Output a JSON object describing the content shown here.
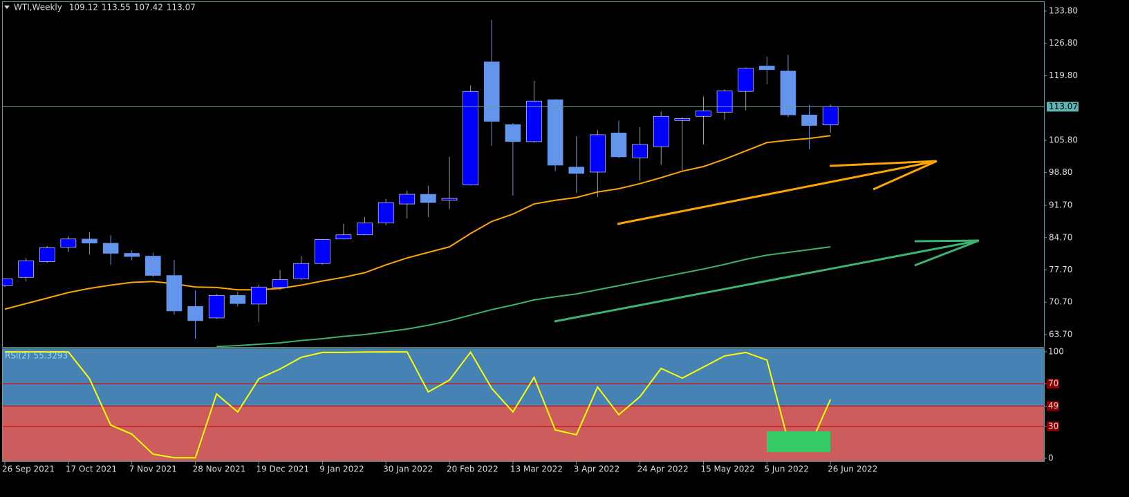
{
  "chart_data": [
    {
      "type": "candlestick",
      "title": "WTI,Weekly",
      "categories": [
        "26 Sep 2021",
        null,
        null,
        "17 Oct 2021",
        null,
        null,
        "7 Nov 2021",
        null,
        null,
        "28 Nov 2021",
        null,
        null,
        "19 Dec 2021",
        null,
        null,
        "9 Jan 2022",
        null,
        null,
        "30 Jan 2022",
        null,
        null,
        "20 Feb 2022",
        null,
        null,
        "13 Mar 2022",
        null,
        null,
        "3 Apr 2022",
        null,
        null,
        "24 Apr 2022",
        null,
        null,
        "15 May 2022",
        null,
        null,
        "5 Jun 2022",
        null,
        null,
        "26 Jun 2022"
      ],
      "open": [
        74.3,
        76.1,
        79.5,
        82.6,
        84.4,
        83.5,
        81.3,
        80.7,
        76.5,
        69.8,
        67.3,
        72.2,
        70.3,
        73.9,
        75.8,
        79.1,
        84.4,
        85.3,
        87.9,
        92.0,
        94.1,
        92.8,
        96.1,
        122.8,
        109.2,
        105.5,
        114.6,
        100.0,
        98.9,
        107.4,
        102.0,
        104.4,
        110.1,
        111.0,
        111.9,
        116.4,
        121.9,
        120.8,
        111.3,
        109.12
      ],
      "high": [
        75.9,
        80.3,
        82.9,
        85.0,
        85.9,
        85.2,
        81.9,
        81.5,
        79.9,
        73.3,
        72.5,
        73.0,
        74.5,
        77.7,
        80.7,
        84.4,
        87.7,
        89.2,
        93.1,
        94.9,
        95.9,
        102.2,
        117.7,
        131.9,
        109.5,
        118.7,
        114.7,
        106.7,
        108.0,
        110.1,
        108.6,
        112.0,
        110.8,
        115.3,
        116.8,
        121.6,
        123.9,
        124.3,
        113.5,
        113.55
      ],
      "low": [
        74.0,
        75.2,
        79.2,
        81.6,
        81.0,
        78.8,
        79.8,
        76.2,
        68.0,
        62.8,
        67.1,
        69.8,
        66.4,
        73.3,
        75.5,
        78.8,
        84.3,
        85.2,
        87.4,
        88.9,
        89.2,
        90.9,
        96.0,
        104.6,
        93.8,
        105.3,
        99.1,
        94.4,
        93.5,
        101.9,
        97.1,
        100.5,
        99.3,
        104.9,
        110.2,
        112.3,
        118.0,
        110.8,
        103.8,
        107.42
      ],
      "close": [
        75.8,
        79.7,
        82.5,
        84.4,
        83.5,
        81.3,
        80.6,
        76.5,
        68.8,
        66.7,
        72.2,
        70.4,
        74.0,
        75.6,
        79.1,
        84.3,
        85.3,
        87.9,
        92.3,
        94.1,
        92.3,
        93.2,
        116.4,
        109.9,
        105.5,
        114.3,
        100.4,
        98.6,
        107.0,
        102.2,
        104.9,
        111.0,
        110.5,
        112.2,
        116.5,
        121.4,
        121.1,
        111.3,
        109.0,
        113.07
      ],
      "up_color": "#0000ff",
      "down_color": "#6495ed",
      "series": [
        {
          "color": "#ffa500",
          "values": [
            69.2,
            70.4,
            71.6,
            72.8,
            73.7,
            74.4,
            75.0,
            75.2,
            74.7,
            74.0,
            73.9,
            73.4,
            73.4,
            73.7,
            74.4,
            75.3,
            76.1,
            77.1,
            78.8,
            80.3,
            81.5,
            82.7,
            85.6,
            88.2,
            89.8,
            92.0,
            92.8,
            93.4,
            94.6,
            95.3,
            96.4,
            97.7,
            99.1,
            100.1,
            101.7,
            103.5,
            105.3,
            105.8,
            106.2,
            106.8
          ]
        },
        {
          "color": "#3cb371",
          "values": [
            null,
            null,
            null,
            null,
            null,
            null,
            null,
            null,
            null,
            null,
            61.1,
            61.3,
            61.6,
            61.9,
            62.4,
            62.8,
            63.3,
            63.7,
            64.3,
            64.9,
            65.7,
            66.7,
            67.9,
            69.1,
            70.1,
            71.2,
            71.9,
            72.5,
            73.4,
            74.3,
            75.2,
            76.1,
            77.0,
            77.9,
            78.9,
            80.0,
            80.9,
            81.5,
            82.1,
            82.7
          ]
        }
      ],
      "ylim": [
        61.0,
        135.9
      ],
      "yticks": [
        {
          "value": 133.8,
          "label": "133.80"
        },
        {
          "value": 126.8,
          "label": "126.80"
        },
        {
          "value": 119.8,
          "label": "119.80"
        },
        {
          "value": 105.8,
          "label": "105.80"
        },
        {
          "value": 98.8,
          "label": "98.80"
        },
        {
          "value": 91.7,
          "label": "91.70"
        },
        {
          "value": 84.7,
          "label": "84.70"
        },
        {
          "value": 77.7,
          "label": "77.70"
        },
        {
          "value": 70.7,
          "label": "70.70"
        },
        {
          "value": 63.7,
          "label": "63.70"
        }
      ]
    },
    {
      "type": "line",
      "title": "RSI(2)",
      "color": "#ffff00",
      "values": [
        99.9,
        99.9,
        99.9,
        99.9,
        74.7,
        31.2,
        22.7,
        3.9,
        0.5,
        0.5,
        60.4,
        43.5,
        74.7,
        83.8,
        94.8,
        99.4,
        99.4,
        99.8,
        99.9,
        99.9,
        62.3,
        73.4,
        99.6,
        65.6,
        43.5,
        76.0,
        26.6,
        22.1,
        66.9,
        40.9,
        57.8,
        84.4,
        75.3,
        85.7,
        96.1,
        99.4,
        92.2,
        16.2,
        10.4,
        55.3293
      ],
      "ylim": [
        -2.6,
        103.2
      ],
      "yticks": [
        100,
        70,
        49,
        30,
        0
      ],
      "levels": [
        70,
        49,
        30
      ],
      "upper_color": "#4682b4",
      "lower_color": "#cd5c5c",
      "level_color": "#c81e1e"
    }
  ]
}
